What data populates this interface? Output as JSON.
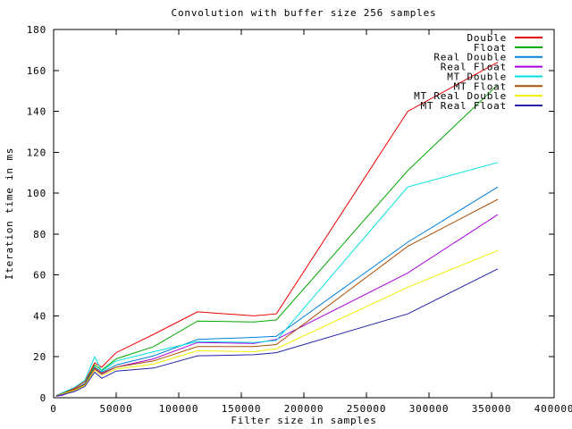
{
  "window": {
    "background": "#ffffff"
  },
  "chart_data": {
    "type": "line",
    "title": "Convolution with buffer size 256 samples",
    "xlabel": "Filter size in samples",
    "ylabel": "Iteration time in ms",
    "xlim": [
      0,
      400000
    ],
    "ylim": [
      0,
      180
    ],
    "xticks": [
      0,
      50000,
      100000,
      150000,
      200000,
      250000,
      300000,
      350000,
      400000
    ],
    "yticks": [
      0,
      20,
      40,
      60,
      80,
      100,
      120,
      140,
      160,
      180
    ],
    "grid": false,
    "legend_position": "top-right-inside",
    "axis_color": "#000000",
    "x": [
      2000,
      7000,
      16500,
      25000,
      32768,
      38500,
      50000,
      80000,
      115000,
      160000,
      178000,
      283000,
      355000
    ],
    "series": [
      {
        "name": "Double",
        "color": "#ee0000",
        "values": [
          1.0,
          2.2,
          4.5,
          8.0,
          17.0,
          15.0,
          22.0,
          31.0,
          42.0,
          40.0,
          41.0,
          140.0,
          164.0
        ]
      },
      {
        "name": "Float",
        "color": "#00a800",
        "values": [
          1.0,
          2.0,
          4.0,
          7.0,
          16.0,
          13.5,
          19.0,
          25.0,
          37.5,
          37.0,
          38.0,
          111.0,
          153.0
        ]
      },
      {
        "name": "Real Double",
        "color": "#0080dd",
        "values": [
          1.0,
          2.0,
          4.0,
          7.0,
          15.0,
          12.5,
          16.0,
          20.5,
          28.5,
          29.5,
          30.0,
          76.0,
          103.0
        ]
      },
      {
        "name": "Real Float",
        "color": "#a800e0",
        "values": [
          0.8,
          1.2,
          3.5,
          6.5,
          14.0,
          11.5,
          15.0,
          19.0,
          27.0,
          26.5,
          28.5,
          61.0,
          89.5
        ]
      },
      {
        "name": "MT Double",
        "color": "#00e0e0",
        "values": [
          1.0,
          2.5,
          5.0,
          8.5,
          20.0,
          13.0,
          18.0,
          22.5,
          27.5,
          27.0,
          28.0,
          103.0,
          115.0
        ]
      },
      {
        "name": "MT Float",
        "color": "#aa4e06",
        "values": [
          1.0,
          2.0,
          4.0,
          6.5,
          14.5,
          12.0,
          15.0,
          18.0,
          25.0,
          25.0,
          26.0,
          74.0,
          97.0
        ]
      },
      {
        "name": "MT Real Double",
        "color": "#efef00",
        "values": [
          0.8,
          1.8,
          3.5,
          6.0,
          13.5,
          11.0,
          14.0,
          16.5,
          23.0,
          22.5,
          24.0,
          54.0,
          72.0
        ]
      },
      {
        "name": "MT Real Float",
        "color": "#2222aa",
        "values": [
          0.8,
          1.5,
          3.0,
          5.5,
          12.5,
          9.5,
          13.0,
          14.5,
          20.5,
          21.0,
          22.0,
          41.0,
          63.0
        ]
      }
    ]
  }
}
